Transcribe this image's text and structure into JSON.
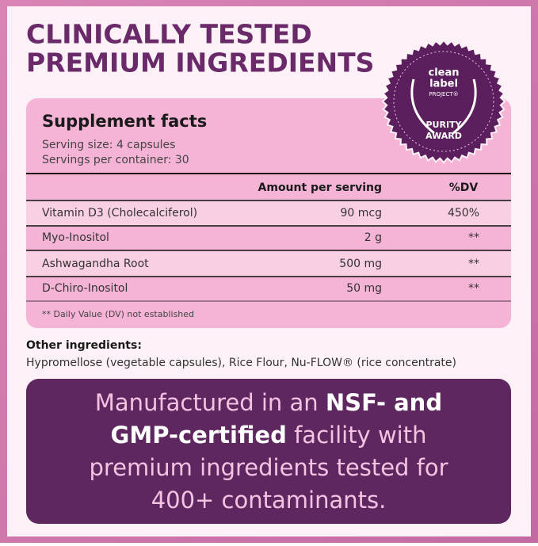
{
  "header": {
    "title_lines": [
      "CLINICALLY TESTED",
      "PREMIUM INGREDIENTS"
    ]
  },
  "badge": {
    "lines": [
      "clean",
      "label",
      "PROJECT®",
      "PURITY",
      "AWARD"
    ]
  },
  "facts": {
    "title": "Supplement facts",
    "serving_lines": [
      "Serving size: 4 capsules",
      "Servings per container: 30"
    ],
    "table": {
      "header": [
        "Amount per serving",
        "%DV"
      ],
      "rows": [
        [
          "Vitamin D3 (Cholecalciferol)",
          "90 mcg",
          "450%"
        ],
        [
          "Myo-Inositol",
          "2 g",
          "**"
        ],
        [
          "Ashwagandha Root",
          "500 mg",
          "**"
        ],
        [
          "D-Chiro-Inositol",
          "50 mg",
          "**"
        ]
      ]
    },
    "footnote": "** Daily Value (DV) not established"
  },
  "other_ingredients": {
    "label": "Other ingredients:",
    "text": "Hypromellose (vegetable capsules), Rice Flour, Nu-FLOW® (rice concentrate)"
  },
  "statement": {
    "lines": [
      [
        {
          "text": "Manufactured in an ",
          "bold": false
        },
        {
          "text": "NSF- and",
          "bold": true
        }
      ],
      [
        {
          "text": "GMP-certified",
          "bold": true
        },
        {
          "text": " facility with",
          "bold": false
        }
      ],
      [
        {
          "text": "premium ingredients tested for",
          "bold": false
        }
      ],
      [
        {
          "text": "400+ contaminants.",
          "bold": false
        }
      ]
    ]
  }
}
